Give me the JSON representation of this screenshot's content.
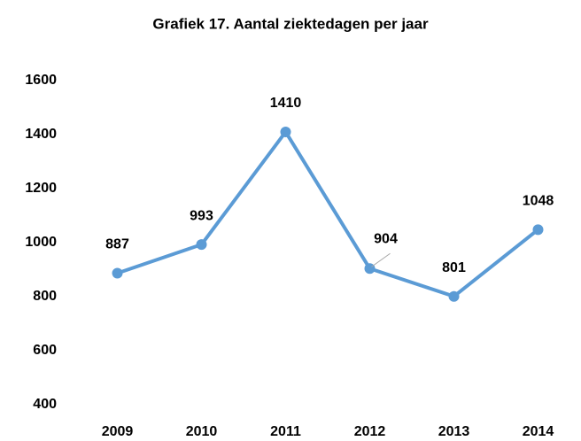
{
  "chart_data": {
    "type": "line",
    "title": "Grafiek 17. Aantal ziektedagen per jaar",
    "categories": [
      "2009",
      "2010",
      "2011",
      "2012",
      "2013",
      "2014"
    ],
    "series": [
      {
        "name": "Aantal ziektedagen",
        "color": "#5b9bd5",
        "values": [
          887,
          993,
          1410,
          904,
          801,
          1048
        ]
      }
    ],
    "ylim": [
      400,
      1600
    ],
    "yticks": [
      400,
      600,
      800,
      1000,
      1200,
      1400,
      1600
    ],
    "grid": false,
    "legend": false
  }
}
